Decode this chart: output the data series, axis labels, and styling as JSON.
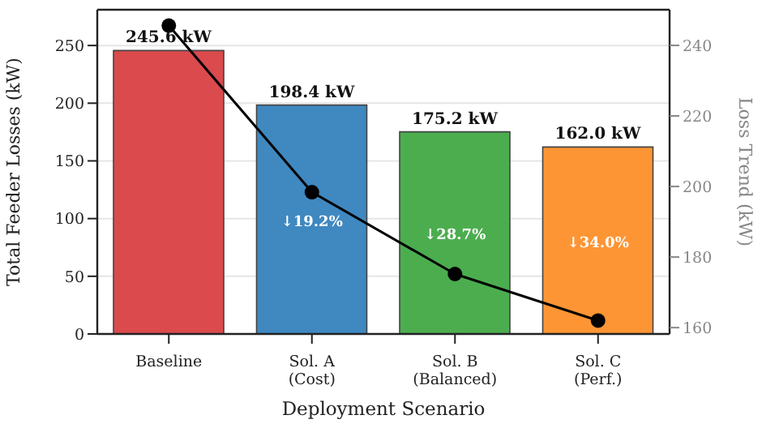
{
  "chart_data": {
    "type": "bar",
    "categories": [
      "Baseline",
      "Sol. A\n(Cost)",
      "Sol. B\n(Balanced)",
      "Sol. C\n(Perf.)"
    ],
    "xlabel": "Deployment Scenario",
    "ylabel": "Total Feeder Losses (kW)",
    "y2label": "Loss Trend (kW)",
    "series": [
      {
        "colors": [
          "#db4a4c",
          "#3f88c0",
          "#4cad4f",
          "#fd9535"
        ],
        "values": [
          245.6,
          198.4,
          175.2,
          162.0
        ],
        "value_labels": [
          "245.6 kW",
          "198.4 kW",
          "175.2 kW",
          "162.0 kW"
        ]
      },
      {
        "type": "line",
        "axis": "y2",
        "color": "#000000",
        "values": [
          245.6,
          198.4,
          175.2,
          162.0
        ],
        "marker": "circle"
      }
    ],
    "annotations": [
      "↓19.2%",
      "↓28.7%",
      "↓34.0%"
    ],
    "ylim": [
      0,
      281
    ],
    "yticks": [
      0,
      50,
      100,
      150,
      200,
      250
    ],
    "y2lim": [
      158.2,
      250.1
    ],
    "y2ticks": [
      160,
      180,
      200,
      220,
      240
    ],
    "grid": "y",
    "legend": false
  }
}
